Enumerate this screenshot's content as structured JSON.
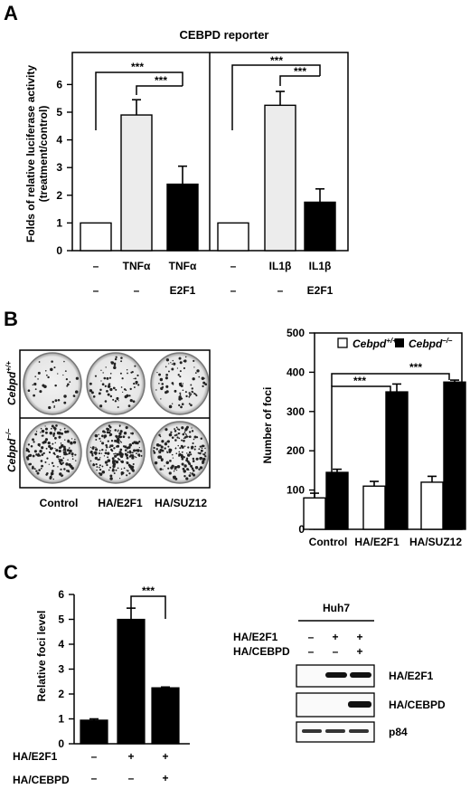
{
  "figure": {
    "panel_a": {
      "letter": "A",
      "title": "CEBPD reporter",
      "ylabel_line1": "Folds of relative luciferase activity",
      "ylabel_line2": "(treatment/control)",
      "yticks": [
        "0",
        "1",
        "2",
        "3",
        "4",
        "5",
        "6"
      ],
      "row1": [
        "–",
        "TNFα",
        "TNFα",
        "–",
        "IL1β",
        "IL1β"
      ],
      "row2": [
        "–",
        "–",
        "E2F1",
        "–",
        "–",
        "E2F1"
      ],
      "sig": [
        "***",
        "***",
        "***",
        "***"
      ]
    },
    "panel_b": {
      "letter": "B",
      "img_row_labels": [
        "Cebpd+/+",
        "Cebpd–/–"
      ],
      "img_col_labels": [
        "Control",
        "HA/E2F1",
        "HA/SUZ12"
      ],
      "ylabel": "Number of foci",
      "yticks": [
        "0",
        "100",
        "200",
        "300",
        "400",
        "500"
      ],
      "legend": [
        {
          "label": "Cebpd",
          "sup": "+/+"
        },
        {
          "label": "Cebpd",
          "sup": "–/–"
        }
      ],
      "sig": [
        "***",
        "***"
      ]
    },
    "panel_c": {
      "letter": "C",
      "ylabel": "Relative foci level",
      "yticks": [
        "0",
        "1",
        "2",
        "3",
        "4",
        "5",
        "6"
      ],
      "row1_label": "HA/E2F1",
      "row2_label": "HA/CEBPD",
      "row1": [
        "–",
        "+",
        "+"
      ],
      "row2": [
        "–",
        "–",
        "+"
      ],
      "sig": "***",
      "blot": {
        "cell_line": "Huh7",
        "row1_label": "HA/E2F1",
        "row2_label": "HA/CEBPD",
        "row1": [
          "–",
          "+",
          "+"
        ],
        "row2": [
          "–",
          "–",
          "+"
        ],
        "bands": [
          "HA/E2F1",
          "HA/CEBPD",
          "p84"
        ]
      }
    }
  },
  "chart_data": [
    {
      "type": "bar",
      "title": "CEBPD reporter",
      "ylabel": "Folds of relative luciferase activity (treatment/control)",
      "ylim": [
        0,
        6
      ],
      "categories": [
        "–",
        "TNFα",
        "TNFα + E2F1",
        "–",
        "IL1β",
        "IL1β + E2F1"
      ],
      "values": [
        1.0,
        4.9,
        2.4,
        1.0,
        5.25,
        1.75
      ],
      "errors": [
        0,
        0.55,
        0.65,
        0,
        0.5,
        0.48
      ],
      "colors": [
        "#ffffff",
        "#ececec",
        "#000000",
        "#ffffff",
        "#ececec",
        "#000000"
      ]
    },
    {
      "type": "bar",
      "ylabel": "Number of foci",
      "ylim": [
        0,
        500
      ],
      "categories": [
        "Control",
        "HA/E2F1",
        "HA/SUZ12"
      ],
      "series": [
        {
          "name": "Cebpd+/+",
          "values": [
            80,
            110,
            120
          ],
          "errors": [
            12,
            12,
            15
          ],
          "color": "#ffffff"
        },
        {
          "name": "Cebpd–/–",
          "values": [
            145,
            350,
            375
          ],
          "errors": [
            8,
            20,
            5
          ],
          "color": "#000000"
        }
      ]
    },
    {
      "type": "bar",
      "ylabel": "Relative foci level",
      "ylim": [
        0,
        6
      ],
      "categories": [
        "–/–",
        "+/–",
        "+/+"
      ],
      "values": [
        0.95,
        5.0,
        2.25
      ],
      "errors": [
        0.05,
        0.45,
        0.03
      ],
      "colors": [
        "#000000",
        "#000000",
        "#000000"
      ]
    }
  ]
}
